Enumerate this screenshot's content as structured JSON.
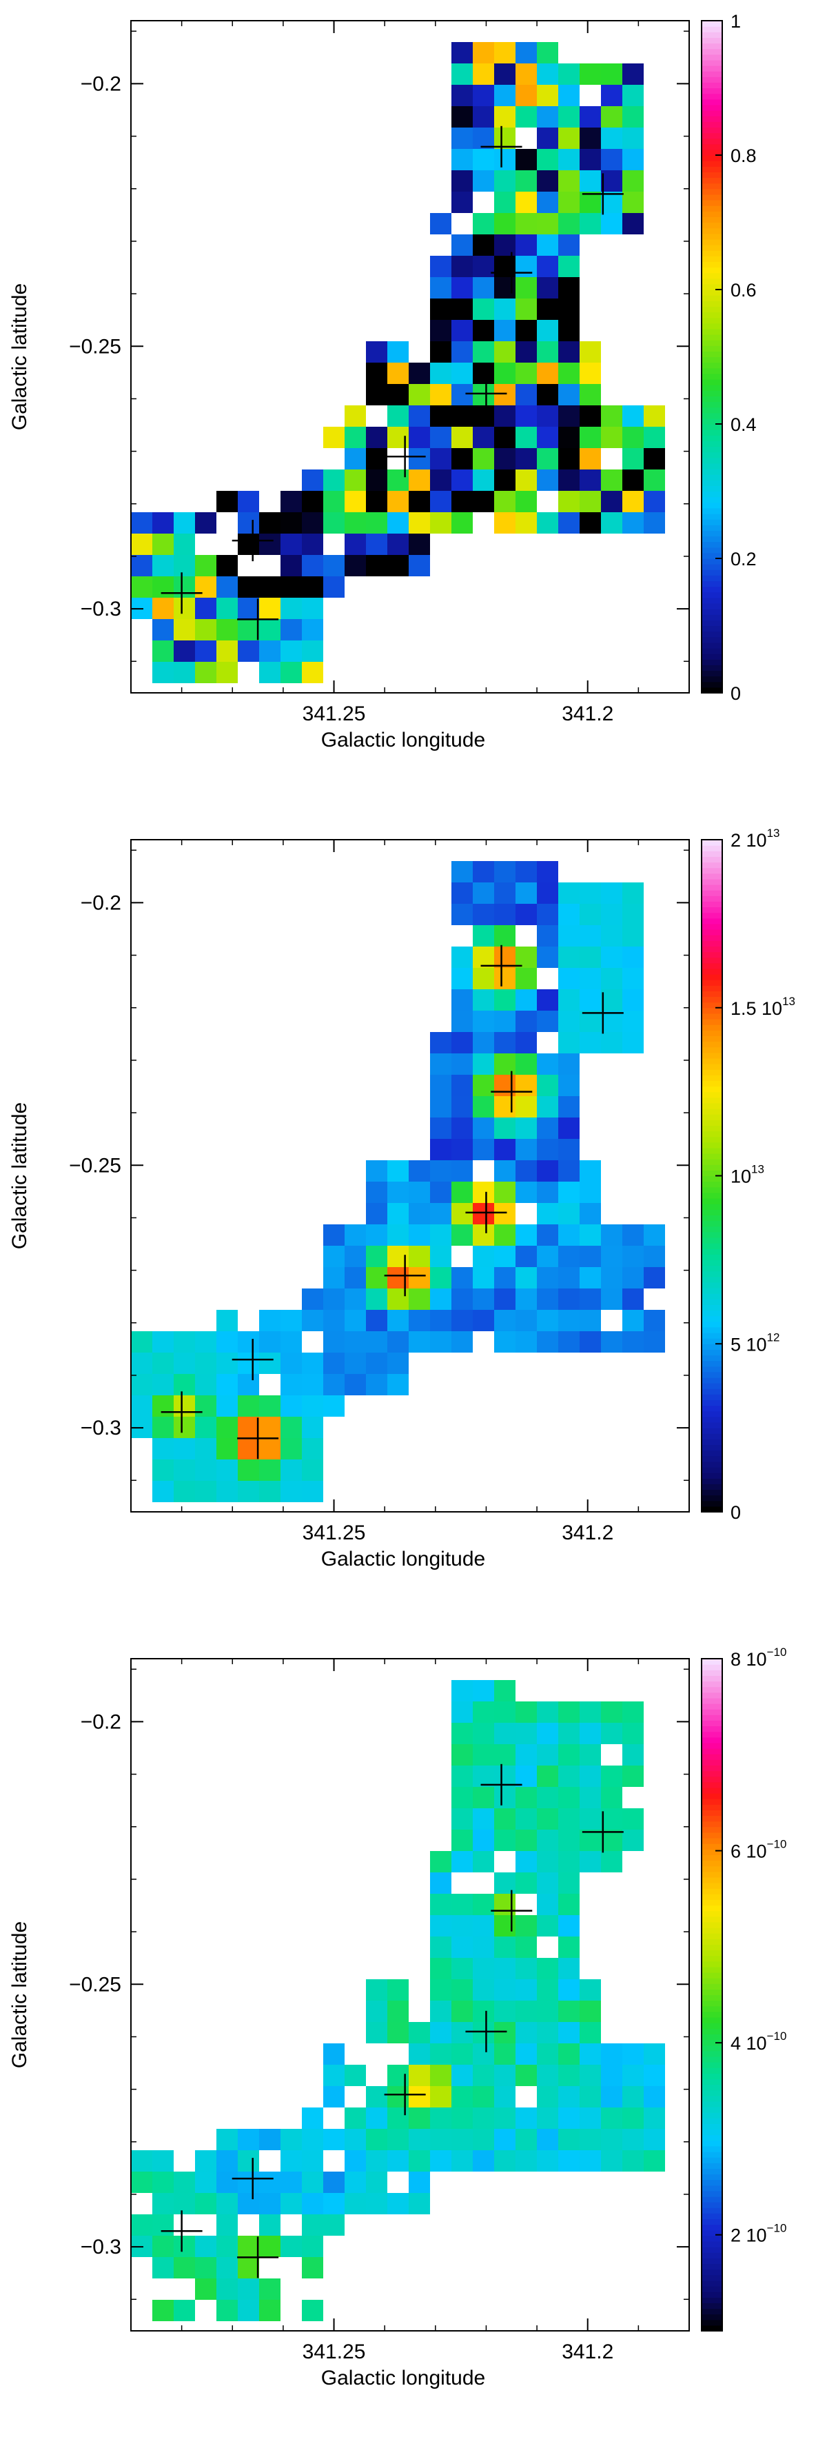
{
  "chart_data": [
    {
      "type": "heatmap",
      "xlabel": "Galactic longitude",
      "ylabel": "Galactic latitude",
      "xlim": [
        341.29,
        341.18
      ],
      "ylim": [
        -0.316,
        -0.188
      ],
      "x_ticks": [
        {
          "value": 341.25,
          "label": "341.25"
        },
        {
          "value": 341.2,
          "label": "341.2"
        }
      ],
      "y_ticks": [
        {
          "value": -0.2,
          "label": "−0.2"
        },
        {
          "value": -0.25,
          "label": "−0.25"
        },
        {
          "value": -0.3,
          "label": "−0.3"
        }
      ],
      "colorbar": {
        "min": 0,
        "max": 1,
        "ticks": [
          {
            "value": 0,
            "label": "0",
            "exp": ""
          },
          {
            "value": 0.2,
            "label": "0.2",
            "exp": ""
          },
          {
            "value": 0.4,
            "label": "0.4",
            "exp": ""
          },
          {
            "value": 0.6,
            "label": "0.6",
            "exp": ""
          },
          {
            "value": 0.8,
            "label": "0.8",
            "exp": ""
          },
          {
            "value": 1,
            "label": "1",
            "exp": ""
          }
        ]
      },
      "markers": [
        {
          "x": 341.217,
          "y": -0.212
        },
        {
          "x": 341.197,
          "y": -0.221
        },
        {
          "x": 341.215,
          "y": -0.236
        },
        {
          "x": 341.22,
          "y": -0.259
        },
        {
          "x": 341.236,
          "y": -0.271
        },
        {
          "x": 341.266,
          "y": -0.287
        },
        {
          "x": 341.28,
          "y": -0.297
        },
        {
          "x": 341.265,
          "y": -0.302
        }
      ],
      "regions": [
        {
          "x0": 341.224,
          "x1": 341.206,
          "y0": -0.196,
          "y1": -0.228,
          "base": 0.35,
          "amp": 0.35
        },
        {
          "x0": 341.206,
          "x1": 341.191,
          "y0": -0.2,
          "y1": -0.226,
          "base": 0.25,
          "amp": 0.3
        },
        {
          "x0": 341.231,
          "x1": 341.203,
          "y0": -0.228,
          "y1": -0.25,
          "base": 0.18,
          "amp": 0.35
        },
        {
          "x0": 341.243,
          "x1": 341.201,
          "y0": -0.25,
          "y1": -0.272,
          "base": 0.25,
          "amp": 0.45
        },
        {
          "x0": 341.248,
          "x1": 341.188,
          "y0": -0.262,
          "y1": -0.283,
          "base": 0.3,
          "amp": 0.4
        },
        {
          "x0": 341.255,
          "x1": 341.233,
          "y0": -0.275,
          "y1": -0.29,
          "base": 0.05,
          "amp": 0.18
        },
        {
          "x0": 341.272,
          "x1": 341.252,
          "y0": -0.28,
          "y1": -0.297,
          "base": 0.04,
          "amp": 0.18
        },
        {
          "x0": 341.287,
          "x1": 341.272,
          "y0": -0.283,
          "y1": -0.3,
          "base": 0.4,
          "amp": 0.4
        },
        {
          "x0": 341.283,
          "x1": 341.256,
          "y0": -0.293,
          "y1": -0.312,
          "base": 0.35,
          "amp": 0.3
        }
      ],
      "heatmap_style": "scattered"
    },
    {
      "type": "heatmap",
      "xlabel": "Galactic longitude",
      "ylabel": "Galactic latitude",
      "xlim": [
        341.29,
        341.18
      ],
      "ylim": [
        -0.316,
        -0.188
      ],
      "x_ticks": [
        {
          "value": 341.25,
          "label": "341.25"
        },
        {
          "value": 341.2,
          "label": "341.2"
        }
      ],
      "y_ticks": [
        {
          "value": -0.2,
          "label": "−0.2"
        },
        {
          "value": -0.25,
          "label": "−0.25"
        },
        {
          "value": -0.3,
          "label": "−0.3"
        }
      ],
      "colorbar": {
        "min": 0,
        "max": 20000000000000.0,
        "ticks": [
          {
            "value": 0,
            "label": "0",
            "exp": ""
          },
          {
            "value": 5000000000000.0,
            "label": "5 10",
            "exp": "12"
          },
          {
            "value": 10000000000000.0,
            "label": "10",
            "exp": "13"
          },
          {
            "value": 15000000000000.0,
            "label": "1.5 10",
            "exp": "13"
          },
          {
            "value": 20000000000000.0,
            "label": "2 10",
            "exp": "13"
          }
        ]
      },
      "markers": [
        {
          "x": 341.217,
          "y": -0.212
        },
        {
          "x": 341.197,
          "y": -0.221
        },
        {
          "x": 341.215,
          "y": -0.236
        },
        {
          "x": 341.22,
          "y": -0.259
        },
        {
          "x": 341.236,
          "y": -0.271
        },
        {
          "x": 341.266,
          "y": -0.287
        },
        {
          "x": 341.28,
          "y": -0.297
        },
        {
          "x": 341.265,
          "y": -0.302
        }
      ],
      "regions": [
        {
          "x0": 341.224,
          "x1": 341.206,
          "y0": -0.196,
          "y1": -0.228,
          "base": 0.2,
          "amp": 0.1
        },
        {
          "x0": 341.206,
          "x1": 341.191,
          "y0": -0.2,
          "y1": -0.226,
          "base": 0.3,
          "amp": 0.05
        },
        {
          "x0": 341.231,
          "x1": 341.203,
          "y0": -0.228,
          "y1": -0.25,
          "base": 0.2,
          "amp": 0.1
        },
        {
          "x0": 341.243,
          "x1": 341.201,
          "y0": -0.25,
          "y1": -0.272,
          "base": 0.25,
          "amp": 0.1
        },
        {
          "x0": 341.248,
          "x1": 341.188,
          "y0": -0.262,
          "y1": -0.283,
          "base": 0.22,
          "amp": 0.08
        },
        {
          "x0": 341.255,
          "x1": 341.233,
          "y0": -0.275,
          "y1": -0.29,
          "base": 0.24,
          "amp": 0.06
        },
        {
          "x0": 341.272,
          "x1": 341.252,
          "y0": -0.28,
          "y1": -0.297,
          "base": 0.28,
          "amp": 0.06
        },
        {
          "x0": 341.287,
          "x1": 341.272,
          "y0": -0.283,
          "y1": -0.3,
          "base": 0.32,
          "amp": 0.06
        },
        {
          "x0": 341.283,
          "x1": 341.256,
          "y0": -0.293,
          "y1": -0.312,
          "base": 0.32,
          "amp": 0.06
        }
      ],
      "heatmap_style": "peaked",
      "peaks": [
        {
          "x": 341.217,
          "y": -0.212,
          "value": 0.78
        },
        {
          "x": 341.215,
          "y": -0.236,
          "value": 0.8
        },
        {
          "x": 341.22,
          "y": -0.259,
          "value": 0.82
        },
        {
          "x": 341.236,
          "y": -0.271,
          "value": 0.8
        },
        {
          "x": 341.265,
          "y": -0.302,
          "value": 0.85
        },
        {
          "x": 341.28,
          "y": -0.297,
          "value": 0.6
        }
      ]
    },
    {
      "type": "heatmap",
      "xlabel": "Galactic longitude",
      "ylabel": "Galactic latitude",
      "xlim": [
        341.29,
        341.18
      ],
      "ylim": [
        -0.316,
        -0.188
      ],
      "x_ticks": [
        {
          "value": 341.25,
          "label": "341.25"
        },
        {
          "value": 341.2,
          "label": "341.2"
        }
      ],
      "y_ticks": [
        {
          "value": -0.2,
          "label": "−0.2"
        },
        {
          "value": -0.25,
          "label": "−0.25"
        },
        {
          "value": -0.3,
          "label": "−0.3"
        }
      ],
      "colorbar": {
        "min": 1e-10,
        "max": 8e-10,
        "ticks": [
          {
            "value": 2e-10,
            "label": "2 10",
            "exp": "−10"
          },
          {
            "value": 4e-10,
            "label": "4 10",
            "exp": "−10"
          },
          {
            "value": 6e-10,
            "label": "6 10",
            "exp": "−10"
          },
          {
            "value": 8e-10,
            "label": "8 10",
            "exp": "−10"
          }
        ]
      },
      "markers": [
        {
          "x": 341.217,
          "y": -0.212
        },
        {
          "x": 341.197,
          "y": -0.221
        },
        {
          "x": 341.215,
          "y": -0.236
        },
        {
          "x": 341.22,
          "y": -0.259
        },
        {
          "x": 341.236,
          "y": -0.271
        },
        {
          "x": 341.266,
          "y": -0.287
        },
        {
          "x": 341.28,
          "y": -0.297
        },
        {
          "x": 341.265,
          "y": -0.302
        }
      ],
      "regions": [
        {
          "x0": 341.224,
          "x1": 341.206,
          "y0": -0.196,
          "y1": -0.228,
          "base": 0.35,
          "amp": 0.15
        },
        {
          "x0": 341.206,
          "x1": 341.191,
          "y0": -0.2,
          "y1": -0.226,
          "base": 0.35,
          "amp": 0.1
        },
        {
          "x0": 341.231,
          "x1": 341.203,
          "y0": -0.228,
          "y1": -0.25,
          "base": 0.33,
          "amp": 0.14
        },
        {
          "x0": 341.243,
          "x1": 341.201,
          "y0": -0.25,
          "y1": -0.272,
          "base": 0.35,
          "amp": 0.15
        },
        {
          "x0": 341.248,
          "x1": 341.188,
          "y0": -0.262,
          "y1": -0.283,
          "base": 0.32,
          "amp": 0.12
        },
        {
          "x0": 341.255,
          "x1": 341.233,
          "y0": -0.275,
          "y1": -0.29,
          "base": 0.28,
          "amp": 0.1
        },
        {
          "x0": 341.272,
          "x1": 341.252,
          "y0": -0.28,
          "y1": -0.297,
          "base": 0.3,
          "amp": 0.1
        },
        {
          "x0": 341.287,
          "x1": 341.272,
          "y0": -0.283,
          "y1": -0.3,
          "base": 0.36,
          "amp": 0.12
        },
        {
          "x0": 341.283,
          "x1": 341.256,
          "y0": -0.293,
          "y1": -0.312,
          "base": 0.38,
          "amp": 0.12
        }
      ],
      "heatmap_style": "peaked",
      "peaks": [
        {
          "x": 341.232,
          "y": -0.27,
          "value": 0.68
        },
        {
          "x": 341.215,
          "y": -0.236,
          "value": 0.55
        },
        {
          "x": 341.265,
          "y": -0.302,
          "value": 0.55
        }
      ]
    }
  ]
}
